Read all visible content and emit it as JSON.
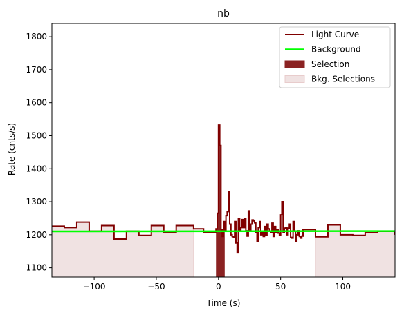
{
  "chart_data": {
    "type": "line",
    "title": "nb",
    "xlabel": "Time (s)",
    "ylabel": "Rate (cnts/s)",
    "xlim": [
      -134,
      142
    ],
    "ylim": [
      1072,
      1840
    ],
    "x_ticks": [
      -100,
      -50,
      0,
      50,
      100
    ],
    "y_ticks": [
      1100,
      1200,
      1300,
      1400,
      1500,
      1600,
      1700,
      1800
    ],
    "grid": false,
    "legend_position": "top-right",
    "colors": {
      "light_curve": "#800000",
      "background": "#00ff00",
      "selection": "#8b2222",
      "bkg_selection": "#f0e2e2",
      "bkg_selection_edge": "#e8cccc"
    },
    "legend": [
      {
        "label": "Light Curve",
        "kind": "line",
        "color": "#800000"
      },
      {
        "label": "Background",
        "kind": "line",
        "color": "#00ff00"
      },
      {
        "label": "Selection",
        "kind": "patch",
        "color": "#8b2222"
      },
      {
        "label": "Bkg. Selections",
        "kind": "patch",
        "color": "#f0e2e2"
      }
    ],
    "series": [
      {
        "name": "Light Curve",
        "style": "step-post",
        "x": [
          -134,
          -124,
          -114,
          -104,
          -94,
          -84,
          -74,
          -64,
          -54,
          -44,
          -34,
          -20,
          -12,
          -2,
          -1,
          0,
          1,
          2,
          3,
          4,
          5,
          6,
          7,
          8,
          9,
          10,
          11,
          12,
          13,
          14,
          15,
          16,
          17,
          18,
          19,
          20,
          21,
          22,
          23,
          24,
          25,
          26,
          27,
          28,
          29,
          30,
          31,
          32,
          33,
          34,
          35,
          36,
          37,
          38,
          39,
          40,
          41,
          42,
          43,
          44,
          45,
          46,
          47,
          48,
          49,
          50,
          51,
          52,
          53,
          54,
          55,
          56,
          57,
          58,
          59,
          60,
          61,
          62,
          63,
          64,
          65,
          66,
          67,
          68,
          78,
          88,
          98,
          108,
          118,
          128,
          142
        ],
        "y": [
          1226,
          1222,
          1238,
          1211,
          1228,
          1187,
          1211,
          1198,
          1228,
          1207,
          1228,
          1218,
          1208,
          1218,
          1265,
          1532,
          1470,
          1215,
          1195,
          1240,
          1210,
          1258,
          1270,
          1330,
          1232,
          1200,
          1195,
          1192,
          1240,
          1175,
          1145,
          1248,
          1210,
          1222,
          1246,
          1222,
          1250,
          1212,
          1196,
          1272,
          1215,
          1232,
          1245,
          1242,
          1236,
          1208,
          1180,
          1222,
          1240,
          1200,
          1210,
          1195,
          1225,
          1198,
          1232,
          1218,
          1210,
          1208,
          1235,
          1195,
          1225,
          1208,
          1215,
          1205,
          1198,
          1260,
          1300,
          1208,
          1220,
          1222,
          1200,
          1220,
          1232,
          1192,
          1190,
          1240,
          1210,
          1180,
          1200,
          1212,
          1195,
          1190,
          1196,
          1216,
          1194,
          1230,
          1200,
          1198,
          1206,
          1210,
          1200
        ]
      },
      {
        "name": "Background",
        "style": "line",
        "x": [
          -134,
          142
        ],
        "y": [
          1210,
          1211
        ]
      }
    ],
    "selection": {
      "label": "Selection",
      "x_range": [
        -2,
        5
      ]
    },
    "bkg_selections": {
      "label": "Bkg. Selections",
      "ranges": [
        [
          -134,
          -20
        ],
        [
          78,
          142
        ]
      ]
    }
  }
}
